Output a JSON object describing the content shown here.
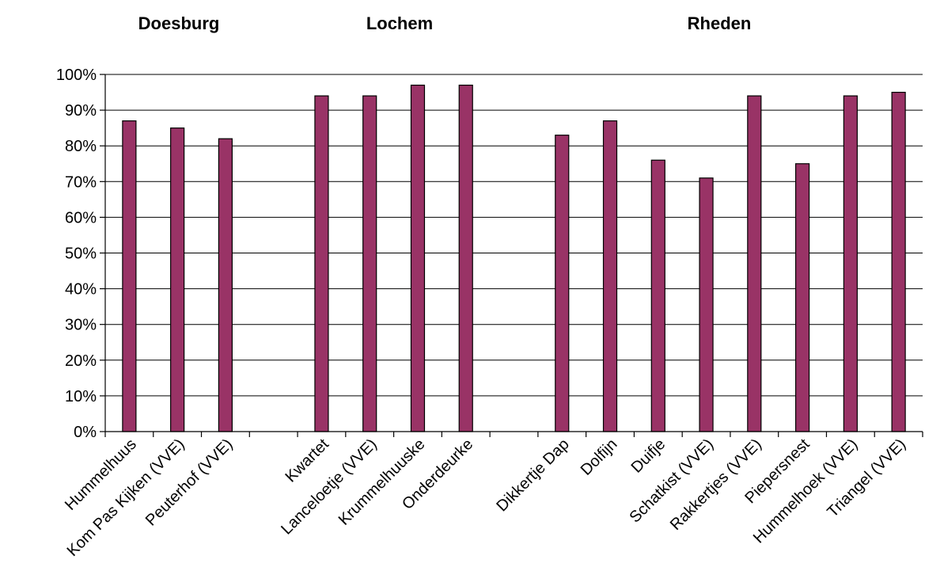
{
  "chart_data": {
    "type": "bar",
    "group_titles": [
      "Doesburg",
      "Lochem",
      "Rheden"
    ],
    "categories": [
      "Hummelhuus",
      "Kom Pas Kijken (VVE)",
      "Peuterhof (VVE)",
      "",
      "Kwartet",
      "Lanceloetje (VVE)",
      "Krummelhuuske",
      "Onderdeurke",
      "",
      "Dikkertje Dap",
      "Dolfijn",
      "Duifje",
      "Schatkist (VVE)",
      "Rakkertjes (VVE)",
      "Piepersnest",
      "Hummelhoek (VVE)",
      "Triangel (VVE)"
    ],
    "values": [
      87,
      85,
      82,
      null,
      94,
      94,
      97,
      97,
      null,
      83,
      87,
      76,
      71,
      94,
      75,
      94,
      95
    ],
    "yticks": [
      "0%",
      "10%",
      "20%",
      "30%",
      "40%",
      "50%",
      "60%",
      "70%",
      "80%",
      "90%",
      "100%"
    ],
    "ylim": [
      0,
      100
    ],
    "grid": true,
    "bar_color": "#993366"
  }
}
